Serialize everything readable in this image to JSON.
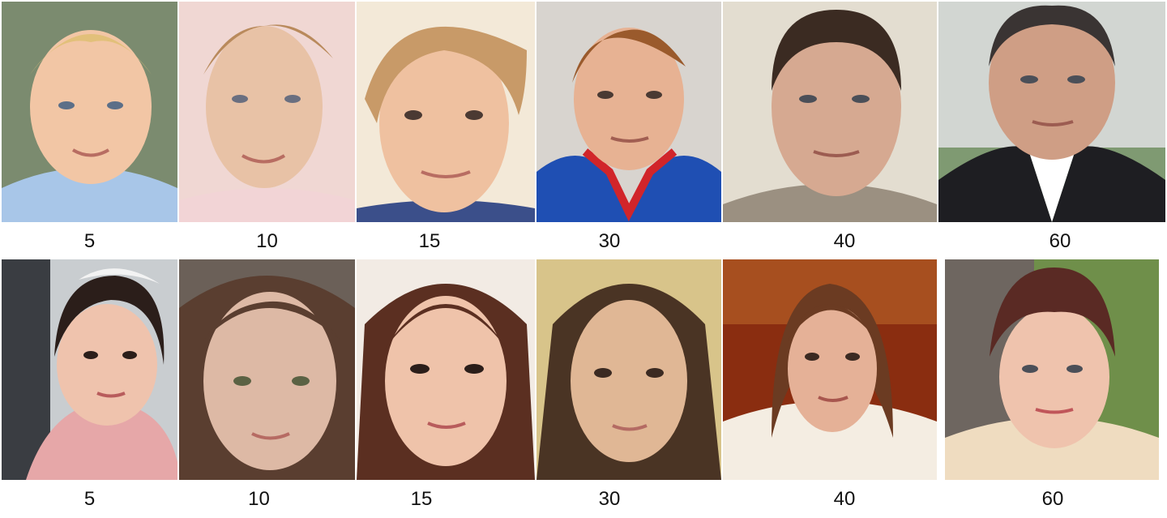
{
  "rows": [
    {
      "group": "male",
      "ages": [
        "5",
        "10",
        "15",
        "30",
        "40",
        "60"
      ],
      "hair_colors": [
        "#e2c07a",
        "#b98a5c",
        "#c89a68",
        "#9a5a2c",
        "#3b2b22",
        "#3a3433"
      ],
      "skin_colors": [
        "#f2c6a5",
        "#e8c2a6",
        "#efc1a0",
        "#e7b293",
        "#d6a991",
        "#cf9e85"
      ],
      "clothes_colors": [
        "#a8c6e8",
        "#f2d4d6",
        "#3b4f8a",
        "#1f4fb3",
        "#9b9081",
        "#1e1e22"
      ],
      "background_colors": [
        "#7b8b6f",
        "#f0d7d3",
        "#f3e9d8",
        "#d8d4cf",
        "#e3ddd0",
        "#d2d6d2"
      ]
    },
    {
      "group": "female",
      "ages": [
        "5",
        "10",
        "15",
        "30",
        "40",
        "60"
      ],
      "hair_colors": [
        "#2b1e1a",
        "#5a3e30",
        "#5b2f21",
        "#4a3424",
        "#6b3b22",
        "#5a2a24"
      ],
      "skin_colors": [
        "#efc3ad",
        "#ddb9a5",
        "#efc3aa",
        "#e0b795",
        "#e5b197",
        "#efc3ad"
      ],
      "clothes_colors": [
        "#e6a7a8",
        "#4a3a35",
        "#5b2f21",
        "#5a4332",
        "#f4ede2",
        "#efdcc0"
      ],
      "background_colors": [
        "#c9cdd0",
        "#6b6058",
        "#f2ebe4",
        "#d8c48a",
        "#8a2d10",
        "#6f8f4a"
      ]
    }
  ]
}
